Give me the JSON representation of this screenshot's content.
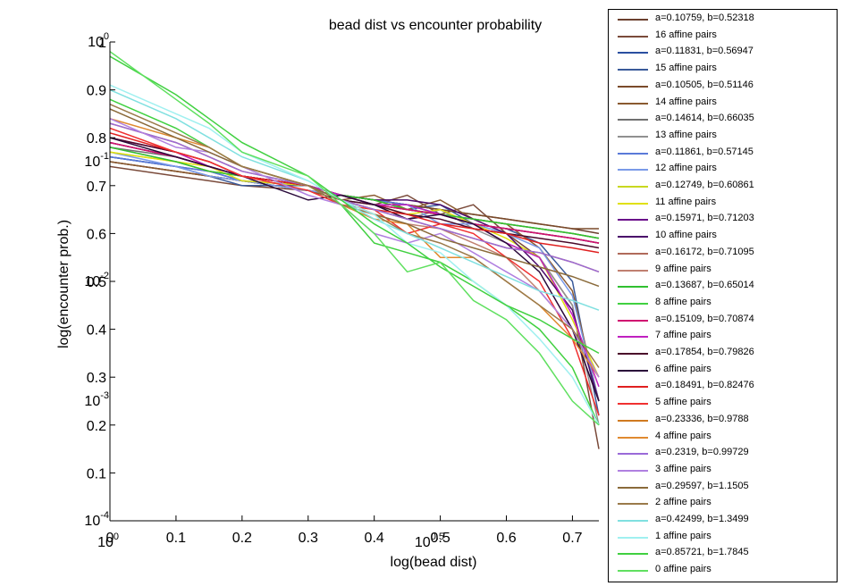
{
  "chart_data": {
    "type": "line",
    "title": "bead dist vs encounter probability",
    "xlabel": "log(bead dist)",
    "ylabel": "log(encounter prob.)",
    "xlim": [
      0,
      0.74
    ],
    "ylim": [
      0.0,
      1.0
    ],
    "x_ticks": [
      "0",
      "0.1",
      "0.2",
      "0.3",
      "0.4",
      "0.5",
      "0.6",
      "0.7"
    ],
    "y_ticks": [
      "0.1",
      "0.2",
      "0.3",
      "0.4",
      "0.5",
      "0.6",
      "0.7",
      "0.8",
      "0.9",
      "1"
    ],
    "x_log_ticks": [
      "10^0",
      "10^0.5"
    ],
    "y_log_ticks": [
      "10^0",
      "10^-1",
      "10^-2",
      "10^-3",
      "10^-4"
    ],
    "legend_position": "right-outside",
    "x": [
      0.0,
      0.1,
      0.15,
      0.2,
      0.3,
      0.35,
      0.4,
      0.45,
      0.5,
      0.55,
      0.6,
      0.65,
      0.7,
      0.74
    ],
    "series": [
      {
        "name": "a=0.10759, b=0.52318",
        "color": "#6b3f2e",
        "values": [
          0.75,
          0.73,
          0.72,
          0.71,
          0.69,
          0.68,
          0.67,
          0.66,
          0.65,
          0.64,
          0.63,
          0.62,
          0.61,
          0.6
        ]
      },
      {
        "name": "16 affine pairs",
        "color": "#7a4a3a",
        "values": [
          0.74,
          0.72,
          0.71,
          0.7,
          0.69,
          0.67,
          0.66,
          0.68,
          0.64,
          0.66,
          0.6,
          0.55,
          0.45,
          0.15
        ]
      },
      {
        "name": "a=0.11831, b=0.56947",
        "color": "#2a4fa0",
        "values": [
          0.76,
          0.74,
          0.73,
          0.71,
          0.7,
          0.68,
          0.67,
          0.66,
          0.64,
          0.63,
          0.62,
          0.61,
          0.6,
          0.59
        ]
      },
      {
        "name": "15 affine pairs",
        "color": "#3a5a9a",
        "values": [
          0.76,
          0.74,
          0.72,
          0.7,
          0.7,
          0.68,
          0.67,
          0.65,
          0.66,
          0.62,
          0.61,
          0.58,
          0.5,
          0.22
        ]
      },
      {
        "name": "a=0.10505, b=0.51146",
        "color": "#7a4a2a",
        "values": [
          0.75,
          0.73,
          0.72,
          0.71,
          0.69,
          0.68,
          0.67,
          0.66,
          0.65,
          0.64,
          0.63,
          0.62,
          0.61,
          0.61
        ]
      },
      {
        "name": "14 affine pairs",
        "color": "#8a5a30",
        "values": [
          0.75,
          0.73,
          0.72,
          0.71,
          0.69,
          0.67,
          0.68,
          0.65,
          0.67,
          0.63,
          0.62,
          0.57,
          0.48,
          0.25
        ]
      },
      {
        "name": "a=0.14614, b=0.66035",
        "color": "#707070",
        "values": [
          0.78,
          0.76,
          0.74,
          0.72,
          0.7,
          0.68,
          0.67,
          0.65,
          0.64,
          0.62,
          0.61,
          0.6,
          0.59,
          0.58
        ]
      },
      {
        "name": "13 affine pairs",
        "color": "#909090",
        "values": [
          0.78,
          0.75,
          0.73,
          0.72,
          0.7,
          0.68,
          0.66,
          0.63,
          0.65,
          0.61,
          0.58,
          0.55,
          0.45,
          0.2
        ]
      },
      {
        "name": "a=0.11861, b=0.57145",
        "color": "#5a7ad8",
        "values": [
          0.76,
          0.74,
          0.73,
          0.71,
          0.7,
          0.68,
          0.67,
          0.66,
          0.64,
          0.63,
          0.62,
          0.61,
          0.6,
          0.59
        ]
      },
      {
        "name": "12 affine pairs",
        "color": "#7a9ae8",
        "values": [
          0.77,
          0.74,
          0.72,
          0.71,
          0.69,
          0.68,
          0.66,
          0.66,
          0.62,
          0.62,
          0.6,
          0.57,
          0.47,
          0.25
        ]
      },
      {
        "name": "a=0.12749, b=0.60861",
        "color": "#c8d820",
        "values": [
          0.77,
          0.75,
          0.73,
          0.72,
          0.7,
          0.68,
          0.67,
          0.65,
          0.64,
          0.63,
          0.62,
          0.61,
          0.6,
          0.59
        ]
      },
      {
        "name": "11 affine pairs",
        "color": "#e0e010",
        "values": [
          0.77,
          0.75,
          0.74,
          0.71,
          0.7,
          0.68,
          0.66,
          0.64,
          0.65,
          0.62,
          0.59,
          0.55,
          0.42,
          0.3
        ]
      },
      {
        "name": "a=0.15971, b=0.71203",
        "color": "#6a0a8a",
        "values": [
          0.79,
          0.76,
          0.74,
          0.72,
          0.7,
          0.68,
          0.66,
          0.65,
          0.64,
          0.62,
          0.61,
          0.6,
          0.59,
          0.58
        ]
      },
      {
        "name": "10 affine pairs",
        "color": "#4a0a6a",
        "values": [
          0.79,
          0.76,
          0.74,
          0.72,
          0.7,
          0.68,
          0.67,
          0.67,
          0.66,
          0.63,
          0.6,
          0.53,
          0.44,
          0.25
        ]
      },
      {
        "name": "a=0.16172, b=0.71095",
        "color": "#b06a5a",
        "values": [
          0.79,
          0.76,
          0.74,
          0.72,
          0.7,
          0.68,
          0.66,
          0.65,
          0.64,
          0.62,
          0.61,
          0.6,
          0.59,
          0.58
        ]
      },
      {
        "name": "9 affine pairs",
        "color": "#c08070",
        "values": [
          0.8,
          0.77,
          0.74,
          0.72,
          0.7,
          0.67,
          0.64,
          0.62,
          0.61,
          0.58,
          0.55,
          0.48,
          0.4,
          0.25
        ]
      },
      {
        "name": "a=0.13687, b=0.65014",
        "color": "#30c030",
        "values": [
          0.78,
          0.75,
          0.73,
          0.72,
          0.7,
          0.68,
          0.67,
          0.65,
          0.64,
          0.63,
          0.62,
          0.61,
          0.6,
          0.59
        ]
      },
      {
        "name": "8 affine pairs",
        "color": "#40d040",
        "values": [
          0.88,
          0.82,
          0.78,
          0.74,
          0.7,
          0.66,
          0.58,
          0.56,
          0.54,
          0.5,
          0.45,
          0.4,
          0.32,
          0.2
        ]
      },
      {
        "name": "a=0.15109, b=0.70874",
        "color": "#d01070",
        "values": [
          0.79,
          0.76,
          0.74,
          0.72,
          0.7,
          0.68,
          0.66,
          0.65,
          0.64,
          0.62,
          0.61,
          0.6,
          0.59,
          0.58
        ]
      },
      {
        "name": "7 affine pairs",
        "color": "#c020c0",
        "values": [
          0.8,
          0.77,
          0.74,
          0.72,
          0.7,
          0.68,
          0.66,
          0.66,
          0.64,
          0.62,
          0.58,
          0.55,
          0.43,
          0.28
        ]
      },
      {
        "name": "a=0.17854, b=0.79826",
        "color": "#4a0a2a",
        "values": [
          0.8,
          0.77,
          0.75,
          0.72,
          0.7,
          0.67,
          0.66,
          0.64,
          0.63,
          0.61,
          0.6,
          0.59,
          0.58,
          0.57
        ]
      },
      {
        "name": "6 affine pairs",
        "color": "#2a0a3a",
        "values": [
          0.8,
          0.76,
          0.74,
          0.72,
          0.67,
          0.68,
          0.66,
          0.63,
          0.64,
          0.62,
          0.58,
          0.52,
          0.4,
          0.25
        ]
      },
      {
        "name": "a=0.18491, b=0.82476",
        "color": "#e02020",
        "values": [
          0.81,
          0.77,
          0.75,
          0.72,
          0.7,
          0.67,
          0.65,
          0.64,
          0.62,
          0.61,
          0.6,
          0.58,
          0.57,
          0.56
        ]
      },
      {
        "name": "5 affine pairs",
        "color": "#f03030",
        "values": [
          0.82,
          0.77,
          0.75,
          0.72,
          0.69,
          0.66,
          0.65,
          0.6,
          0.62,
          0.6,
          0.55,
          0.5,
          0.38,
          0.22
        ]
      },
      {
        "name": "a=0.23336, b=0.9788",
        "color": "#d07a20",
        "values": [
          0.83,
          0.79,
          0.76,
          0.73,
          0.7,
          0.67,
          0.65,
          0.63,
          0.61,
          0.59,
          0.57,
          0.56,
          0.54,
          0.52
        ]
      },
      {
        "name": "4 affine pairs",
        "color": "#e08a30",
        "values": [
          0.84,
          0.8,
          0.78,
          0.74,
          0.7,
          0.66,
          0.63,
          0.62,
          0.55,
          0.55,
          0.5,
          0.45,
          0.38,
          0.3
        ]
      },
      {
        "name": "a=0.2319, b=0.99729",
        "color": "#9a6ad8",
        "values": [
          0.83,
          0.79,
          0.76,
          0.73,
          0.7,
          0.67,
          0.65,
          0.63,
          0.61,
          0.59,
          0.57,
          0.56,
          0.54,
          0.52
        ]
      },
      {
        "name": "3 affine pairs",
        "color": "#b080e0",
        "values": [
          0.84,
          0.78,
          0.77,
          0.74,
          0.68,
          0.66,
          0.6,
          0.58,
          0.6,
          0.56,
          0.52,
          0.48,
          0.4,
          0.3
        ]
      },
      {
        "name": "a=0.29597, b=1.1505",
        "color": "#8a6a3a",
        "values": [
          0.86,
          0.8,
          0.77,
          0.74,
          0.7,
          0.67,
          0.64,
          0.62,
          0.59,
          0.57,
          0.55,
          0.53,
          0.51,
          0.49
        ]
      },
      {
        "name": "2 affine pairs",
        "color": "#9a7a4a",
        "values": [
          0.87,
          0.81,
          0.78,
          0.74,
          0.7,
          0.66,
          0.64,
          0.6,
          0.58,
          0.55,
          0.5,
          0.45,
          0.4,
          0.32
        ]
      },
      {
        "name": "a=0.42499, b=1.3499",
        "color": "#80e0e0",
        "values": [
          0.9,
          0.84,
          0.8,
          0.76,
          0.71,
          0.67,
          0.63,
          0.6,
          0.57,
          0.54,
          0.51,
          0.48,
          0.46,
          0.44
        ]
      },
      {
        "name": "1 affine pairs",
        "color": "#a0f0f0",
        "values": [
          0.91,
          0.85,
          0.82,
          0.77,
          0.71,
          0.67,
          0.64,
          0.58,
          0.56,
          0.5,
          0.45,
          0.38,
          0.3,
          0.2
        ]
      },
      {
        "name": "a=0.85721, b=1.7845",
        "color": "#40d040",
        "values": [
          0.97,
          0.89,
          0.84,
          0.79,
          0.72,
          0.67,
          0.62,
          0.58,
          0.53,
          0.49,
          0.45,
          0.42,
          0.38,
          0.35
        ]
      },
      {
        "name": "0 affine pairs",
        "color": "#60e060",
        "values": [
          0.98,
          0.88,
          0.83,
          0.77,
          0.72,
          0.66,
          0.6,
          0.52,
          0.54,
          0.46,
          0.42,
          0.35,
          0.25,
          0.2
        ]
      }
    ]
  }
}
